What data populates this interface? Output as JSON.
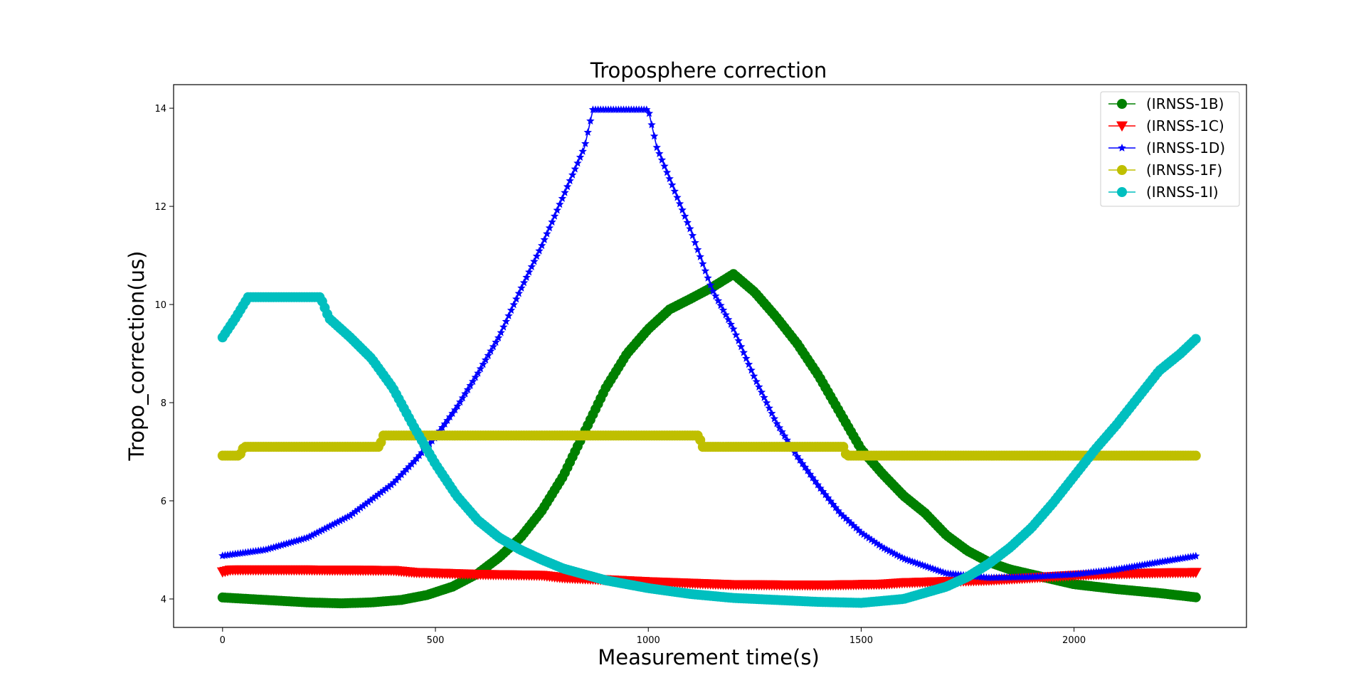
{
  "chart_data": {
    "type": "line",
    "title": "Troposphere correction",
    "xlabel": "Measurement time(s)",
    "ylabel": "Tropo_correction(us)",
    "xlim": [
      -115,
      2405
    ],
    "ylim": [
      3.42,
      14.48
    ],
    "xticks": [
      0,
      500,
      1000,
      1500,
      2000
    ],
    "yticks": [
      4,
      6,
      8,
      10,
      12,
      14
    ],
    "grid": false,
    "legend_position": "top-right",
    "x_end": 2290,
    "series": [
      {
        "name": "(IRNSS-1B)",
        "color": "#008000",
        "marker": "circle",
        "step": 0.0,
        "points": [
          [
            0,
            4.03
          ],
          [
            100,
            3.98
          ],
          [
            200,
            3.93
          ],
          [
            280,
            3.91
          ],
          [
            350,
            3.93
          ],
          [
            420,
            3.98
          ],
          [
            480,
            4.08
          ],
          [
            540,
            4.25
          ],
          [
            600,
            4.52
          ],
          [
            650,
            4.85
          ],
          [
            700,
            5.25
          ],
          [
            750,
            5.8
          ],
          [
            800,
            6.5
          ],
          [
            850,
            7.4
          ],
          [
            900,
            8.3
          ],
          [
            950,
            9.0
          ],
          [
            1000,
            9.5
          ],
          [
            1050,
            9.9
          ],
          [
            1100,
            10.12
          ],
          [
            1150,
            10.35
          ],
          [
            1200,
            10.62
          ],
          [
            1250,
            10.25
          ],
          [
            1300,
            9.75
          ],
          [
            1350,
            9.2
          ],
          [
            1400,
            8.55
          ],
          [
            1450,
            7.8
          ],
          [
            1500,
            7.05
          ],
          [
            1550,
            6.55
          ],
          [
            1600,
            6.1
          ],
          [
            1650,
            5.75
          ],
          [
            1700,
            5.3
          ],
          [
            1750,
            4.98
          ],
          [
            1800,
            4.75
          ],
          [
            1850,
            4.6
          ],
          [
            1900,
            4.5
          ],
          [
            2000,
            4.3
          ],
          [
            2100,
            4.2
          ],
          [
            2200,
            4.12
          ],
          [
            2290,
            4.03
          ]
        ]
      },
      {
        "name": "(IRNSS-1C)",
        "color": "#ff0000",
        "marker": "triangle-down",
        "step": 0.0,
        "points": [
          [
            0,
            4.55
          ],
          [
            20,
            4.59
          ],
          [
            200,
            4.59
          ],
          [
            400,
            4.58
          ],
          [
            450,
            4.54
          ],
          [
            600,
            4.5
          ],
          [
            750,
            4.48
          ],
          [
            800,
            4.43
          ],
          [
            1000,
            4.35
          ],
          [
            1100,
            4.32
          ],
          [
            1200,
            4.29
          ],
          [
            1400,
            4.28
          ],
          [
            1550,
            4.3
          ],
          [
            1600,
            4.33
          ],
          [
            1800,
            4.38
          ],
          [
            1900,
            4.43
          ],
          [
            2000,
            4.48
          ],
          [
            2100,
            4.51
          ],
          [
            2200,
            4.53
          ],
          [
            2290,
            4.54
          ]
        ]
      },
      {
        "name": "(IRNSS-1D)",
        "color": "#0000ff",
        "marker": "star",
        "step": 0.0,
        "points": [
          [
            0,
            4.88
          ],
          [
            100,
            5.0
          ],
          [
            200,
            5.25
          ],
          [
            300,
            5.7
          ],
          [
            400,
            6.35
          ],
          [
            450,
            6.8
          ],
          [
            500,
            7.3
          ],
          [
            550,
            7.9
          ],
          [
            600,
            8.6
          ],
          [
            650,
            9.35
          ],
          [
            700,
            10.3
          ],
          [
            750,
            11.2
          ],
          [
            800,
            12.2
          ],
          [
            850,
            13.2
          ],
          [
            870,
            13.97
          ],
          [
            1000,
            13.97
          ],
          [
            1020,
            13.2
          ],
          [
            1100,
            11.5
          ],
          [
            1150,
            10.3
          ],
          [
            1200,
            9.5
          ],
          [
            1250,
            8.5
          ],
          [
            1300,
            7.6
          ],
          [
            1350,
            6.9
          ],
          [
            1400,
            6.3
          ],
          [
            1450,
            5.75
          ],
          [
            1500,
            5.35
          ],
          [
            1550,
            5.05
          ],
          [
            1600,
            4.82
          ],
          [
            1700,
            4.52
          ],
          [
            1800,
            4.43
          ],
          [
            1900,
            4.45
          ],
          [
            2000,
            4.5
          ],
          [
            2100,
            4.6
          ],
          [
            2200,
            4.75
          ],
          [
            2290,
            4.88
          ]
        ]
      },
      {
        "name": "(IRNSS-1F)",
        "color": "#bfbf00",
        "marker": "circle",
        "step": 0.0,
        "points": [
          [
            0,
            6.92
          ],
          [
            40,
            6.92
          ],
          [
            50,
            7.1
          ],
          [
            370,
            7.1
          ],
          [
            375,
            7.33
          ],
          [
            1120,
            7.33
          ],
          [
            1125,
            7.1
          ],
          [
            1460,
            7.1
          ],
          [
            1465,
            6.92
          ],
          [
            2290,
            6.92
          ]
        ]
      },
      {
        "name": "(IRNSS-1I)",
        "color": "#00bfbf",
        "marker": "circle",
        "step": 0.0,
        "points": [
          [
            0,
            9.33
          ],
          [
            30,
            9.72
          ],
          [
            60,
            10.15
          ],
          [
            230,
            10.15
          ],
          [
            250,
            9.72
          ],
          [
            300,
            9.33
          ],
          [
            350,
            8.9
          ],
          [
            400,
            8.3
          ],
          [
            450,
            7.5
          ],
          [
            500,
            6.75
          ],
          [
            550,
            6.1
          ],
          [
            600,
            5.6
          ],
          [
            650,
            5.25
          ],
          [
            700,
            5.0
          ],
          [
            750,
            4.8
          ],
          [
            800,
            4.62
          ],
          [
            850,
            4.5
          ],
          [
            900,
            4.38
          ],
          [
            1000,
            4.22
          ],
          [
            1100,
            4.1
          ],
          [
            1200,
            4.02
          ],
          [
            1300,
            3.98
          ],
          [
            1400,
            3.94
          ],
          [
            1500,
            3.92
          ],
          [
            1600,
            4.0
          ],
          [
            1700,
            4.25
          ],
          [
            1750,
            4.45
          ],
          [
            1800,
            4.72
          ],
          [
            1850,
            5.05
          ],
          [
            1900,
            5.45
          ],
          [
            1950,
            5.95
          ],
          [
            2000,
            6.5
          ],
          [
            2050,
            7.05
          ],
          [
            2100,
            7.55
          ],
          [
            2150,
            8.1
          ],
          [
            2200,
            8.65
          ],
          [
            2250,
            9.0
          ],
          [
            2290,
            9.33
          ]
        ]
      }
    ]
  }
}
